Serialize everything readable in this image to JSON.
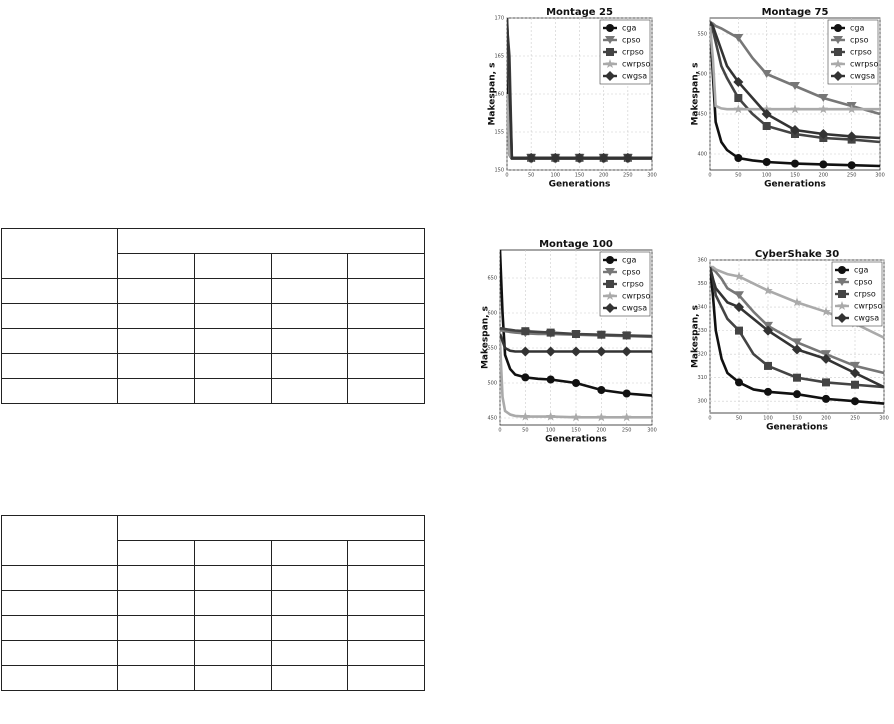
{
  "charts": [
    {
      "type": "line",
      "title": "Montage 25",
      "xlabel": "Generations",
      "ylabel": "Makespan, s",
      "x": [
        0,
        5,
        10,
        20,
        30,
        50,
        75,
        100,
        150,
        200,
        250,
        300
      ],
      "xlim": [
        0,
        300
      ],
      "xticks": [
        0,
        50,
        100,
        150,
        200,
        250,
        300
      ],
      "ylim": [
        150,
        170
      ],
      "yticks": [
        150,
        155,
        160,
        165,
        170
      ],
      "grid": true,
      "legend": "upper right",
      "series": [
        {
          "name": "cga",
          "color": "#111111",
          "marker": "circle",
          "values": [
            165,
            152,
            151.5,
            151.5,
            151.5,
            151.5,
            151.5,
            151.5,
            151.5,
            151.5,
            151.5,
            151.5
          ]
        },
        {
          "name": "cpso",
          "color": "#777777",
          "marker": "triangle",
          "values": [
            170,
            160,
            151.6,
            151.6,
            151.6,
            151.6,
            151.6,
            151.6,
            151.6,
            151.6,
            151.6,
            151.6
          ]
        },
        {
          "name": "crpso",
          "color": "#444444",
          "marker": "square",
          "values": [
            169,
            165,
            151.6,
            151.6,
            151.6,
            151.6,
            151.6,
            151.6,
            151.6,
            151.6,
            151.6,
            151.6
          ]
        },
        {
          "name": "cwrpso",
          "color": "#aaaaaa",
          "marker": "star",
          "values": [
            160,
            152,
            151.6,
            151.6,
            151.6,
            151.6,
            151.6,
            151.6,
            151.6,
            151.6,
            151.6,
            151.6
          ]
        },
        {
          "name": "cwgsa",
          "color": "#333333",
          "marker": "diamond",
          "values": [
            170,
            162,
            151.6,
            151.6,
            151.6,
            151.6,
            151.6,
            151.6,
            151.6,
            151.6,
            151.6,
            151.6
          ]
        }
      ]
    },
    {
      "type": "line",
      "title": "Montage 75",
      "xlabel": "Generations",
      "ylabel": "Makespan, s",
      "x": [
        0,
        5,
        10,
        20,
        30,
        50,
        75,
        100,
        150,
        200,
        250,
        300
      ],
      "xlim": [
        0,
        300
      ],
      "xticks": [
        0,
        50,
        100,
        150,
        200,
        250,
        300
      ],
      "ylim": [
        380,
        570
      ],
      "yticks": [
        400,
        450,
        500,
        550
      ],
      "grid": true,
      "legend": "upper right",
      "series": [
        {
          "name": "cga",
          "color": "#111111",
          "marker": "circle",
          "values": [
            565,
            500,
            440,
            415,
            405,
            395,
            392,
            390,
            388,
            387,
            386,
            385
          ]
        },
        {
          "name": "cpso",
          "color": "#777777",
          "marker": "triangle",
          "values": [
            565,
            563,
            560,
            557,
            553,
            545,
            520,
            500,
            485,
            470,
            460,
            450
          ]
        },
        {
          "name": "crpso",
          "color": "#444444",
          "marker": "square",
          "values": [
            565,
            555,
            540,
            510,
            495,
            470,
            450,
            435,
            425,
            420,
            418,
            415
          ]
        },
        {
          "name": "cwrpso",
          "color": "#aaaaaa",
          "marker": "star",
          "values": [
            560,
            520,
            460,
            457,
            456,
            456,
            456,
            456,
            456,
            456,
            456,
            456
          ]
        },
        {
          "name": "cwgsa",
          "color": "#333333",
          "marker": "diamond",
          "values": [
            565,
            560,
            550,
            530,
            510,
            490,
            470,
            450,
            430,
            425,
            422,
            420
          ]
        }
      ]
    },
    {
      "type": "line",
      "title": "Montage 100",
      "xlabel": "Generations",
      "ylabel": "Makespan, s",
      "x": [
        0,
        5,
        10,
        20,
        30,
        50,
        75,
        100,
        150,
        200,
        250,
        300
      ],
      "xlim": [
        0,
        300
      ],
      "xticks": [
        0,
        50,
        100,
        150,
        200,
        250,
        300
      ],
      "ylim": [
        440,
        690
      ],
      "yticks": [
        450,
        500,
        550,
        600,
        650
      ],
      "grid": true,
      "legend": "upper right",
      "series": [
        {
          "name": "cga",
          "color": "#111111",
          "marker": "circle",
          "values": [
            690,
            600,
            540,
            520,
            512,
            508,
            506,
            505,
            500,
            490,
            485,
            482
          ]
        },
        {
          "name": "cpso",
          "color": "#777777",
          "marker": "triangle",
          "values": [
            575,
            575,
            574,
            573,
            572,
            571,
            570,
            570,
            569,
            568,
            567,
            566
          ]
        },
        {
          "name": "crpso",
          "color": "#444444",
          "marker": "square",
          "values": [
            578,
            578,
            577,
            576,
            575,
            574,
            573,
            572,
            570,
            569,
            568,
            567
          ]
        },
        {
          "name": "cwrpso",
          "color": "#aaaaaa",
          "marker": "star",
          "values": [
            560,
            480,
            460,
            455,
            453,
            452,
            452,
            452,
            451,
            451,
            451,
            451
          ]
        },
        {
          "name": "cwgsa",
          "color": "#333333",
          "marker": "diamond",
          "values": [
            570,
            560,
            550,
            546,
            545,
            545,
            545,
            545,
            545,
            545,
            545,
            545
          ]
        }
      ]
    },
    {
      "type": "line",
      "title": "CyberShake 30",
      "xlabel": "Generations",
      "ylabel": "Makespan, s",
      "x": [
        0,
        5,
        10,
        20,
        30,
        50,
        75,
        100,
        150,
        200,
        250,
        300
      ],
      "xlim": [
        0,
        300
      ],
      "xticks": [
        0,
        50,
        100,
        150,
        200,
        250,
        300
      ],
      "ylim": [
        295,
        360
      ],
      "yticks": [
        300,
        310,
        320,
        330,
        340,
        350,
        360
      ],
      "grid": true,
      "legend": "upper right",
      "series": [
        {
          "name": "cga",
          "color": "#111111",
          "marker": "circle",
          "values": [
            357,
            345,
            330,
            318,
            312,
            308,
            305,
            304,
            303,
            301,
            300,
            299
          ]
        },
        {
          "name": "cpso",
          "color": "#777777",
          "marker": "triangle",
          "values": [
            357,
            356,
            355,
            352,
            348,
            345,
            338,
            332,
            325,
            320,
            315,
            312
          ]
        },
        {
          "name": "crpso",
          "color": "#444444",
          "marker": "square",
          "values": [
            357,
            352,
            345,
            340,
            335,
            330,
            320,
            315,
            310,
            308,
            307,
            306
          ]
        },
        {
          "name": "cwrpso",
          "color": "#aaaaaa",
          "marker": "star",
          "values": [
            357,
            357,
            356,
            355,
            354,
            353,
            350,
            347,
            342,
            338,
            333,
            327
          ]
        },
        {
          "name": "cwgsa",
          "color": "#333333",
          "marker": "diamond",
          "values": [
            357,
            352,
            348,
            345,
            342,
            340,
            335,
            330,
            322,
            318,
            312,
            306
          ]
        }
      ]
    }
  ]
}
